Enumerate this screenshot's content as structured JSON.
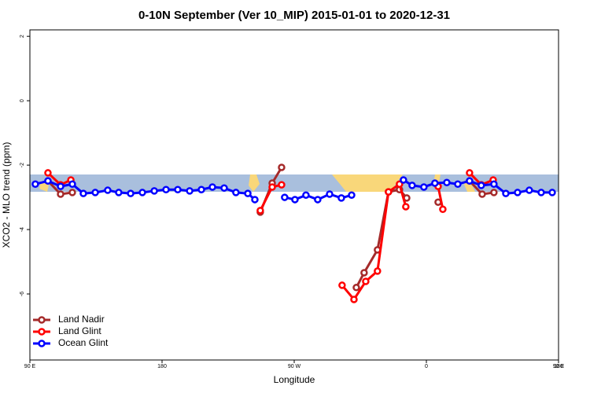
{
  "chart_data": {
    "type": "line",
    "title": "0-10N September (Ver 10_MIP)   2015-01-01 to 2020-12-31",
    "x_label": "Longitude",
    "y_label": "XCO2 - MLO trend (ppm)",
    "xlim": [
      90,
      450
    ],
    "ylim": [
      -8.05,
      2.2
    ],
    "xticks": [
      {
        "value": 90,
        "label": "90 E"
      },
      180,
      {
        "value": 270,
        "label": "90 W"
      },
      {
        "value": 360,
        "label": "0"
      },
      {
        "value": 450,
        "label": "90 E"
      },
      {
        "value": 540,
        "label": "180"
      }
    ],
    "yticks": [
      -6,
      -4,
      -2,
      0,
      2
    ],
    "legend": "bottom-left",
    "series": [
      {
        "name": "Land Nadir",
        "color": "#a52a2a",
        "x": [
          102.3,
          110.9,
          118.9,
          125,
          246.9,
          255.0,
          261.4,
          300,
          312.3,
          317.6,
          326.7,
          334.2,
          341.7,
          346.6,
          352,
          368.0,
          380,
          389.4,
          398.0,
          406.0
        ],
        "values": [
          -2.49,
          -2.9,
          -2.85,
          null,
          -3.46,
          -2.56,
          -2.07,
          null,
          -5.8,
          -5.34,
          -4.63,
          -2.83,
          -2.76,
          -3.02,
          null,
          -3.15,
          null,
          -2.49,
          -2.9,
          -2.85
        ]
      },
      {
        "name": "Land Glint",
        "color": "#ff0000",
        "x": [
          102.3,
          110.9,
          117.9,
          125,
          246.9,
          255.0,
          261.4,
          300,
          302.6,
          310.7,
          318.7,
          326.7,
          334.2,
          341.7,
          346.0,
          352,
          368.0,
          371.2,
          380,
          389.4,
          397.4,
          405.5
        ],
        "values": [
          -2.24,
          -2.61,
          -2.46,
          null,
          -3.41,
          -2.68,
          -2.61,
          null,
          -5.73,
          -6.17,
          -5.61,
          -5.29,
          -2.83,
          -2.59,
          -3.29,
          null,
          -2.66,
          -3.37,
          null,
          -2.24,
          -2.61,
          -2.46
        ]
      },
      {
        "name": "Ocean Glint",
        "color": "#0000ff",
        "x": [
          93.7,
          102.3,
          110.9,
          118.9,
          126.4,
          134.5,
          143.0,
          150.5,
          158.6,
          166.6,
          174.7,
          182.7,
          190.7,
          198.8,
          206.8,
          214.3,
          222.3,
          230.3,
          238.4,
          243.2,
          253,
          263.5,
          270.5,
          278.0,
          286.0,
          294.1,
          302.1,
          309.1,
          326,
          344.4,
          350.3,
          358.3,
          365.8,
          373.9,
          381.4,
          389.4,
          397.4,
          406.0,
          414.1,
          422.1,
          430.1,
          438.2,
          445.7
        ],
        "values": [
          -2.59,
          -2.49,
          -2.66,
          -2.59,
          -2.88,
          -2.85,
          -2.78,
          -2.85,
          -2.88,
          -2.85,
          -2.8,
          -2.76,
          -2.76,
          -2.8,
          -2.76,
          -2.68,
          -2.71,
          -2.85,
          -2.88,
          -3.07,
          null,
          -3.0,
          -3.07,
          -2.93,
          -3.07,
          -2.9,
          -3.02,
          -2.93,
          null,
          -2.46,
          -2.63,
          -2.68,
          -2.56,
          -2.54,
          -2.59,
          -2.49,
          -2.63,
          -2.59,
          -2.88,
          -2.85,
          -2.78,
          -2.85,
          -2.85
        ]
      }
    ]
  }
}
